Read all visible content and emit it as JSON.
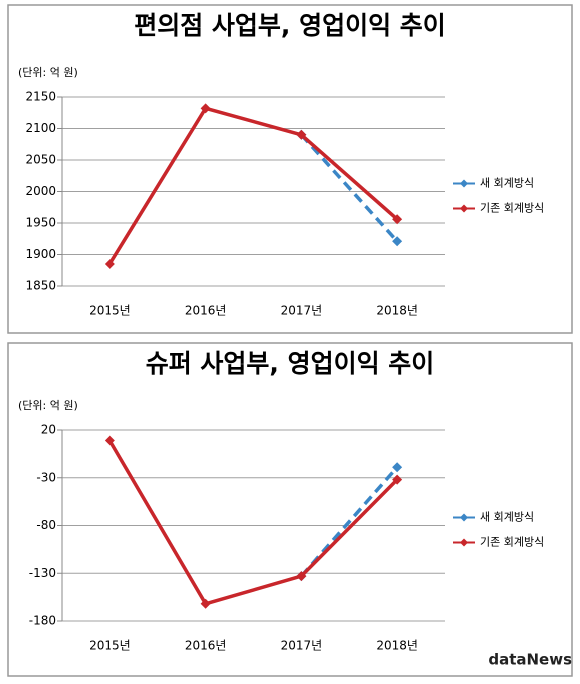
{
  "chart_data": [
    {
      "type": "line",
      "title": "편의점 사업부, 영업이익 추이",
      "unit_label": "(단위: 억 원)",
      "categories": [
        "2015년",
        "2016년",
        "2017년",
        "2018년"
      ],
      "series": [
        {
          "name": "새 회계방식",
          "color": "#3b86c6",
          "line_style": "dashed",
          "values": [
            null,
            null,
            2090,
            1921
          ]
        },
        {
          "name": "기존 회계방식",
          "color": "#c8262b",
          "line_style": "solid",
          "values": [
            1885,
            2132,
            2090,
            1956
          ]
        }
      ],
      "ylim": [
        1850,
        2150
      ],
      "yticks": [
        1850,
        1900,
        1950,
        2000,
        2050,
        2100,
        2150
      ],
      "grid": true,
      "legend": "right"
    },
    {
      "type": "line",
      "title": "슈퍼 사업부, 영업이익 추이",
      "unit_label": "(단위: 억 원)",
      "categories": [
        "2015년",
        "2016년",
        "2017년",
        "2018년"
      ],
      "series": [
        {
          "name": "새 회계방식",
          "color": "#3b86c6",
          "line_style": "dashed",
          "values": [
            null,
            null,
            -133,
            -19
          ]
        },
        {
          "name": "기존 회계방식",
          "color": "#c8262b",
          "line_style": "solid",
          "values": [
            9,
            -162,
            -133,
            -32
          ]
        }
      ],
      "ylim": [
        -180,
        20
      ],
      "yticks": [
        -180,
        -130,
        -80,
        -30,
        20
      ],
      "grid": true,
      "legend": "right"
    }
  ],
  "source": "dataNews"
}
